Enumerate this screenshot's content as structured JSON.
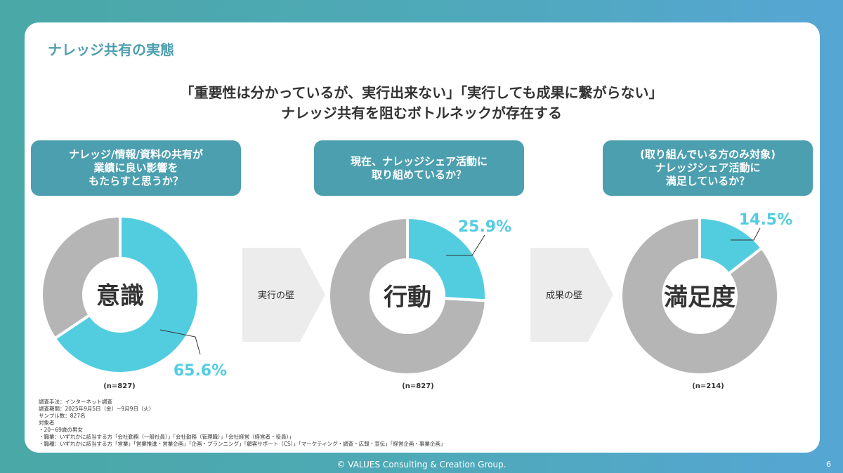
{
  "slide_title": "ナレッジ共有の実態",
  "headline": [
    "「重要性は分かっているが、実行出来ない」「実行しても成果に繋がらない」",
    "ナレッジ共有を阻むボトルネックが存在する"
  ],
  "colors": {
    "accent": "#52cde0",
    "rest": "#b5b5b5",
    "box": "#4c9faf",
    "arrow": "#ececec"
  },
  "chart_data": [
    {
      "type": "pie",
      "question": "ナレッジ/情報/資料の共有が\n業績に良い影響を\nもたらすと思うか？",
      "center_label": "意識",
      "value": 65.6,
      "value_label": "65.6%",
      "n_label": "(n=827)"
    },
    {
      "type": "pie",
      "question": "現在、ナレッジシェア活動に\n取り組めているか？",
      "center_label": "行動",
      "value": 25.9,
      "value_label": "25.9%",
      "n_label": "(n=827)"
    },
    {
      "type": "pie",
      "question": "(取り組んでいる方のみ対象)\nナレッジシェア活動に\n満足しているか？",
      "center_label": "満足度",
      "value": 14.5,
      "value_label": "14.5%",
      "n_label": "(n=214)"
    }
  ],
  "arrows": [
    "実行の壁",
    "成果の壁"
  ],
  "notes": [
    "調査手法：インターネット調査",
    "調査期間：2025年9月5日（金）~9月9日（火）",
    "サンプル数：827名",
    "対象者",
    "・20~69歳の男女",
    "・職業：いずれかに該当する方「会社勤務（一般社員）」「会社勤務（管理職）」「会社経営（経営者・役員）」",
    "・職種：いずれかに該当する方「営業」「営業推進・営業企画」「企画・プランニング」「顧客サポート（CS）」「マーケティング・調査・広報・宣伝」「経営企画・事業企画」"
  ],
  "footer": "© VALUES Consulting & Creation Group.",
  "page_number": "6"
}
